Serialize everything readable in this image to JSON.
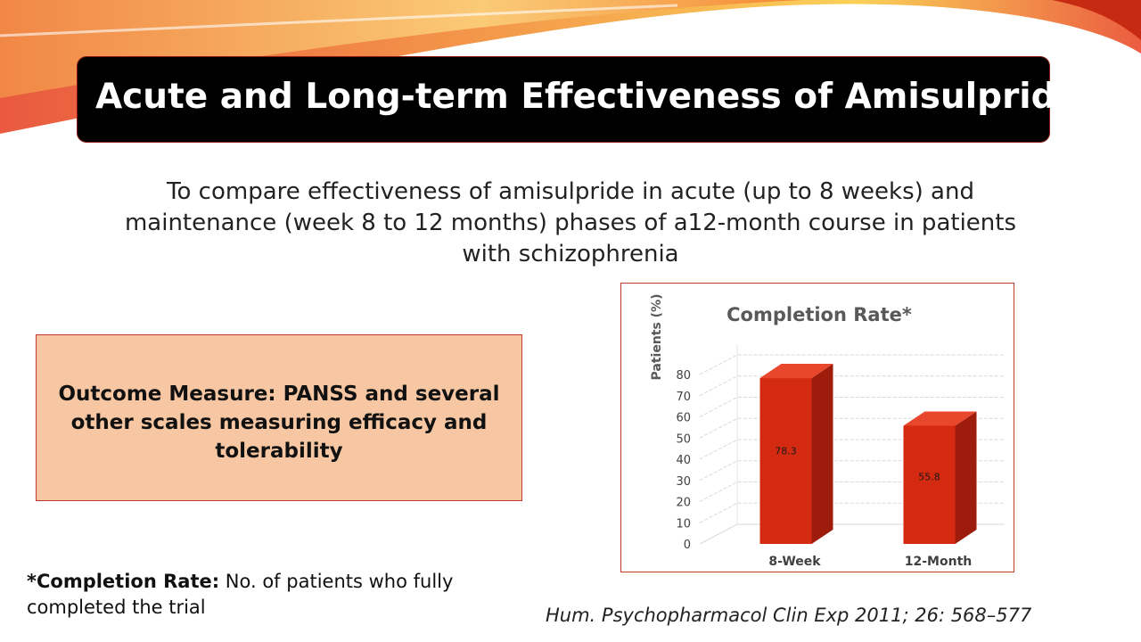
{
  "slide": {
    "title": "Acute and Long-term Effectiveness of Amisulpride",
    "subtitle": "To compare effectiveness of amisulpride in acute (up to 8 weeks) and maintenance (week 8 to 12 months) phases of a12-month course in patients with schizophrenia",
    "outcome": "Outcome Measure:  PANSS and several other scales measuring efficacy and tolerability",
    "footnote_term": "*Completion Rate:",
    "footnote_text": " No. of patients who fully completed the trial",
    "citation": "Hum. Psychopharmacol Clin Exp 2011; 26: 568–577"
  },
  "colors": {
    "bar_front": "#d42a12",
    "bar_side": "#9e1c0b",
    "bar_top": "#e8472e",
    "title_bg": "#000000",
    "box_bg": "#f7c6a2",
    "accent_border": "#c0392b"
  },
  "chart_data": {
    "type": "bar",
    "title": "Completion Rate*",
    "ylabel": "Patients (%)",
    "xlabel": "",
    "categories": [
      "8-Week",
      "12-Month"
    ],
    "values": [
      78.3,
      55.8
    ],
    "data_labels": [
      "78.3",
      "55.8"
    ],
    "ylim": [
      0,
      80
    ],
    "yticks": [
      0,
      10,
      20,
      30,
      40,
      50,
      60,
      70,
      80
    ],
    "ytick_labels": [
      "0",
      "10",
      "20",
      "30",
      "40",
      "50",
      "60",
      "70",
      "80"
    ],
    "grid": true,
    "legend": "none",
    "style": "3d"
  }
}
